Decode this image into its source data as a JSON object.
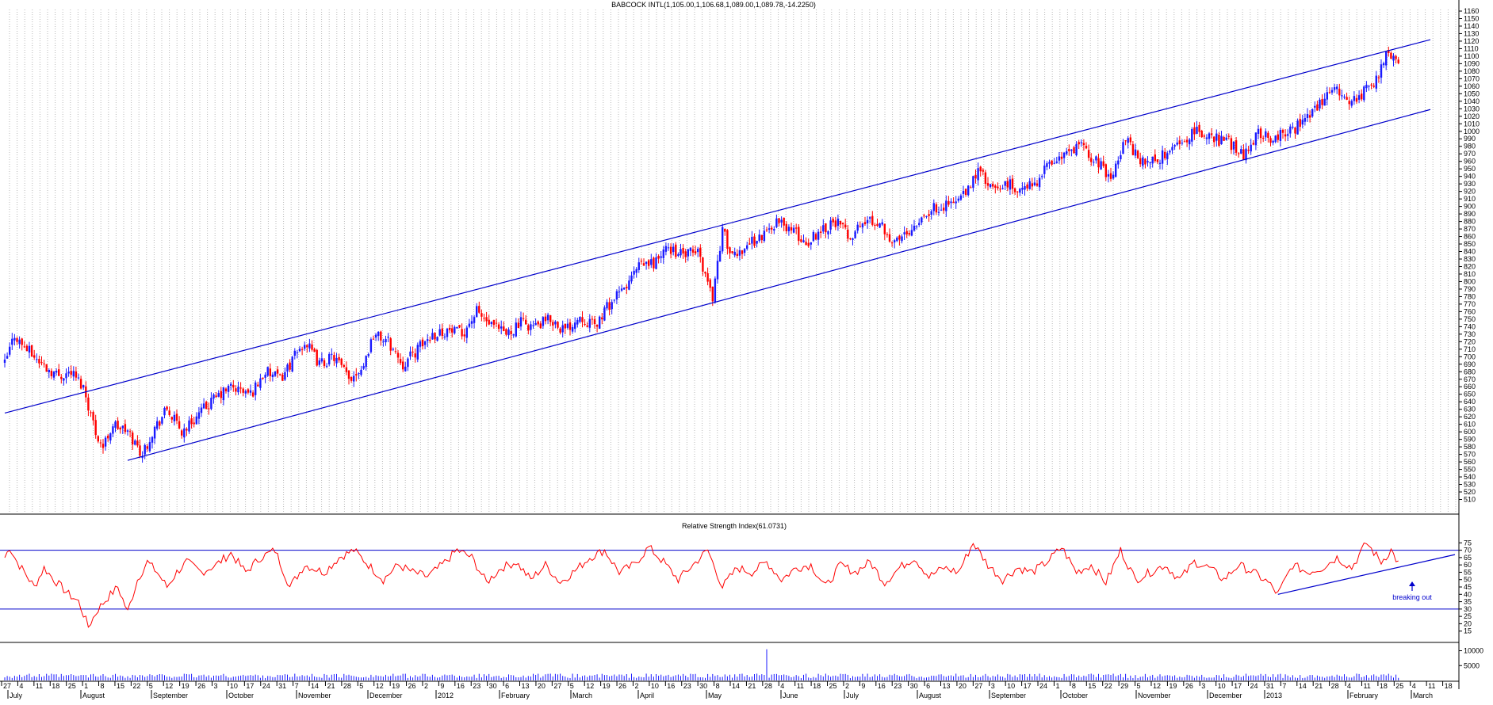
{
  "chart_data": [
    {
      "type": "candlestick",
      "title": "BABCOCK INTL(1,105.00,1,106.68,1,089.00,1,089.78,-14.2250)",
      "ylim": [
        500,
        1160
      ],
      "yticks": [
        510,
        520,
        530,
        540,
        550,
        560,
        570,
        580,
        590,
        600,
        610,
        620,
        630,
        640,
        650,
        660,
        670,
        680,
        690,
        700,
        710,
        720,
        730,
        740,
        750,
        760,
        770,
        780,
        790,
        800,
        810,
        820,
        830,
        840,
        850,
        860,
        870,
        880,
        890,
        900,
        910,
        920,
        930,
        940,
        950,
        960,
        970,
        980,
        990,
        1000,
        1010,
        1020,
        1030,
        1040,
        1050,
        1060,
        1070,
        1080,
        1090,
        1100,
        1110,
        1120,
        1130,
        1140,
        1150,
        1160
      ],
      "grid": "vertical dotted",
      "up_color": "#1a1aff",
      "down_color": "#ff0000",
      "trendline_color": "#0000cc",
      "close_anchors": [
        [
          0,
          690
        ],
        [
          4,
          730
        ],
        [
          6,
          720
        ],
        [
          12,
          700
        ],
        [
          17,
          685
        ],
        [
          22,
          675
        ],
        [
          27,
          680
        ],
        [
          32,
          660
        ],
        [
          37,
          600
        ],
        [
          40,
          580
        ],
        [
          44,
          610
        ],
        [
          50,
          600
        ],
        [
          56,
          570
        ],
        [
          60,
          600
        ],
        [
          66,
          630
        ],
        [
          72,
          600
        ],
        [
          78,
          620
        ],
        [
          84,
          640
        ],
        [
          92,
          660
        ],
        [
          100,
          650
        ],
        [
          106,
          680
        ],
        [
          112,
          670
        ],
        [
          118,
          700
        ],
        [
          122,
          720
        ],
        [
          128,
          690
        ],
        [
          134,
          700
        ],
        [
          140,
          670
        ],
        [
          146,
          690
        ],
        [
          150,
          730
        ],
        [
          156,
          720
        ],
        [
          162,
          690
        ],
        [
          168,
          710
        ],
        [
          174,
          730
        ],
        [
          180,
          735
        ],
        [
          186,
          730
        ],
        [
          192,
          760
        ],
        [
          198,
          740
        ],
        [
          204,
          730
        ],
        [
          210,
          745
        ],
        [
          216,
          740
        ],
        [
          222,
          750
        ],
        [
          228,
          735
        ],
        [
          234,
          755
        ],
        [
          240,
          740
        ],
        [
          246,
          770
        ],
        [
          252,
          790
        ],
        [
          258,
          820
        ],
        [
          264,
          825
        ],
        [
          270,
          845
        ],
        [
          276,
          835
        ],
        [
          282,
          840
        ],
        [
          288,
          780
        ],
        [
          292,
          870
        ],
        [
          296,
          830
        ],
        [
          302,
          850
        ],
        [
          308,
          860
        ],
        [
          314,
          880
        ],
        [
          320,
          870
        ],
        [
          326,
          850
        ],
        [
          332,
          870
        ],
        [
          338,
          880
        ],
        [
          344,
          860
        ],
        [
          350,
          880
        ],
        [
          356,
          880
        ],
        [
          362,
          850
        ],
        [
          368,
          870
        ],
        [
          374,
          890
        ],
        [
          380,
          900
        ],
        [
          386,
          905
        ],
        [
          392,
          920
        ],
        [
          396,
          950
        ],
        [
          402,
          920
        ],
        [
          408,
          930
        ],
        [
          414,
          920
        ],
        [
          420,
          935
        ],
        [
          426,
          960
        ],
        [
          432,
          970
        ],
        [
          438,
          980
        ],
        [
          444,
          960
        ],
        [
          450,
          940
        ],
        [
          456,
          990
        ],
        [
          462,
          960
        ],
        [
          468,
          960
        ],
        [
          474,
          975
        ],
        [
          480,
          990
        ],
        [
          486,
          1000
        ],
        [
          492,
          990
        ],
        [
          498,
          985
        ],
        [
          504,
          970
        ],
        [
          510,
          1000
        ],
        [
          516,
          990
        ],
        [
          522,
          1000
        ],
        [
          528,
          1010
        ],
        [
          534,
          1030
        ],
        [
          540,
          1060
        ],
        [
          546,
          1040
        ],
        [
          552,
          1050
        ],
        [
          558,
          1070
        ],
        [
          562,
          1100
        ],
        [
          565,
          1105
        ],
        [
          567,
          1090
        ]
      ],
      "channel": {
        "upper": [
          [
            0,
            625
          ],
          [
            580,
            1122
          ]
        ],
        "lower": [
          [
            50,
            562
          ],
          [
            580,
            1029
          ]
        ]
      },
      "x_day_labels": [
        "27",
        "4",
        "11",
        "18",
        "25",
        "1",
        "8",
        "15",
        "22",
        "5",
        "12",
        "19",
        "26",
        "3",
        "10",
        "17",
        "24",
        "31",
        "7",
        "14",
        "21",
        "28",
        "5",
        "12",
        "19",
        "26",
        "2",
        "9",
        "16",
        "23",
        "30",
        "6",
        "13",
        "20",
        "27",
        "5",
        "12",
        "19",
        "26",
        "2",
        "10",
        "16",
        "23",
        "30",
        "8",
        "14",
        "21",
        "28",
        "4",
        "11",
        "18",
        "25",
        "2",
        "9",
        "16",
        "23",
        "30",
        "6",
        "13",
        "20",
        "27",
        "3",
        "10",
        "17",
        "24",
        "1",
        "8",
        "15",
        "22",
        "29",
        "5",
        "12",
        "19",
        "26",
        "3",
        "10",
        "17",
        "24",
        "31",
        "7",
        "14",
        "21",
        "28",
        "4",
        "11",
        "18",
        "25",
        "4",
        "11",
        "18"
      ],
      "x_month_labels": [
        "July",
        "August",
        "September",
        "October",
        "November",
        "December",
        "2012",
        "February",
        "March",
        "April",
        "May",
        "June",
        "July",
        "August",
        "September",
        "October",
        "November",
        "December",
        "2013",
        "February",
        "March"
      ]
    },
    {
      "type": "line",
      "title": "Relative Strength Index(61.0731)",
      "ylim": [
        10,
        80
      ],
      "yticks": [
        15,
        20,
        25,
        30,
        35,
        40,
        45,
        50,
        55,
        60,
        65,
        70,
        75
      ],
      "reference_lines": [
        70,
        30
      ],
      "line_color": "#ff0000",
      "rsi_anchors": [
        [
          0,
          65
        ],
        [
          2,
          72
        ],
        [
          5,
          62
        ],
        [
          8,
          55
        ],
        [
          12,
          45
        ],
        [
          16,
          58
        ],
        [
          20,
          50
        ],
        [
          26,
          40
        ],
        [
          30,
          35
        ],
        [
          34,
          18
        ],
        [
          38,
          30
        ],
        [
          42,
          38
        ],
        [
          46,
          45
        ],
        [
          50,
          28
        ],
        [
          54,
          50
        ],
        [
          58,
          62
        ],
        [
          62,
          55
        ],
        [
          66,
          45
        ],
        [
          70,
          55
        ],
        [
          74,
          62
        ],
        [
          80,
          55
        ],
        [
          86,
          60
        ],
        [
          92,
          68
        ],
        [
          98,
          55
        ],
        [
          104,
          65
        ],
        [
          110,
          70
        ],
        [
          116,
          45
        ],
        [
          122,
          60
        ],
        [
          130,
          55
        ],
        [
          136,
          65
        ],
        [
          142,
          70
        ],
        [
          148,
          60
        ],
        [
          154,
          50
        ],
        [
          160,
          60
        ],
        [
          166,
          55
        ],
        [
          172,
          52
        ],
        [
          178,
          60
        ],
        [
          184,
          70
        ],
        [
          190,
          65
        ],
        [
          196,
          48
        ],
        [
          202,
          58
        ],
        [
          208,
          62
        ],
        [
          214,
          50
        ],
        [
          220,
          60
        ],
        [
          226,
          48
        ],
        [
          232,
          56
        ],
        [
          238,
          65
        ],
        [
          244,
          70
        ],
        [
          250,
          55
        ],
        [
          256,
          60
        ],
        [
          262,
          72
        ],
        [
          268,
          62
        ],
        [
          274,
          50
        ],
        [
          280,
          60
        ],
        [
          286,
          70
        ],
        [
          292,
          45
        ],
        [
          298,
          58
        ],
        [
          304,
          55
        ],
        [
          310,
          62
        ],
        [
          316,
          50
        ],
        [
          322,
          58
        ],
        [
          328,
          60
        ],
        [
          334,
          45
        ],
        [
          340,
          60
        ],
        [
          346,
          55
        ],
        [
          352,
          62
        ],
        [
          358,
          48
        ],
        [
          364,
          58
        ],
        [
          370,
          65
        ],
        [
          376,
          52
        ],
        [
          382,
          58
        ],
        [
          388,
          55
        ],
        [
          394,
          75
        ],
        [
          400,
          60
        ],
        [
          406,
          50
        ],
        [
          412,
          58
        ],
        [
          418,
          55
        ],
        [
          424,
          62
        ],
        [
          430,
          72
        ],
        [
          436,
          55
        ],
        [
          442,
          60
        ],
        [
          448,
          48
        ],
        [
          454,
          70
        ],
        [
          460,
          50
        ],
        [
          466,
          55
        ],
        [
          472,
          60
        ],
        [
          478,
          50
        ],
        [
          484,
          62
        ],
        [
          490,
          58
        ],
        [
          496,
          50
        ],
        [
          502,
          60
        ],
        [
          508,
          55
        ],
        [
          514,
          48
        ],
        [
          518,
          40
        ],
        [
          524,
          60
        ],
        [
          530,
          55
        ],
        [
          536,
          58
        ],
        [
          542,
          65
        ],
        [
          548,
          58
        ],
        [
          554,
          75
        ],
        [
          560,
          62
        ],
        [
          564,
          70
        ],
        [
          567,
          61
        ]
      ],
      "trendline": [
        [
          518,
          40
        ],
        [
          590,
          67
        ]
      ],
      "annotation": "breaking out"
    },
    {
      "type": "bar",
      "title": "",
      "yticks": [
        5000,
        10000
      ],
      "ylim": [
        0,
        12000
      ],
      "bar_color": "#1a1aff",
      "spike_at": 310,
      "spike_value": 10500
    }
  ]
}
